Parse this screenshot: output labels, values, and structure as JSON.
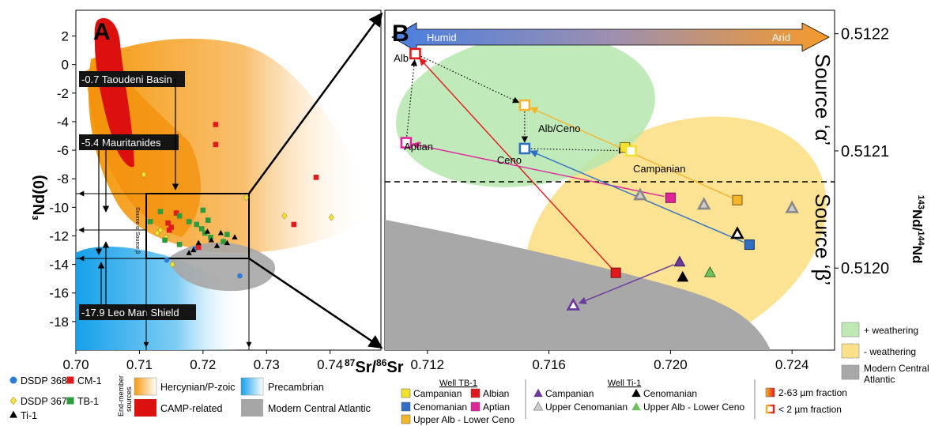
{
  "panelA": {
    "label": "A",
    "xlabel": "87Sr/86Sr",
    "xlabel_sup": "87",
    "xlabel_main1": "Sr/",
    "xlabel_sup2": "86",
    "xlabel_main2": "Sr",
    "ylabel": "εNd(0)",
    "ylabel_eps": "ε",
    "ylabel_rest": "Nd(0)",
    "x_ticks": [
      {
        "v": 0.7,
        "l": "0.70"
      },
      {
        "v": 0.71,
        "l": "0.71"
      },
      {
        "v": 0.72,
        "l": "0.72"
      },
      {
        "v": 0.73,
        "l": "0.73"
      },
      {
        "v": 0.74,
        "l": "0.74"
      }
    ],
    "y_ticks": [
      {
        "v": 2,
        "l": "2"
      },
      {
        "v": 0,
        "l": "0"
      },
      {
        "v": -2,
        "l": "-2"
      },
      {
        "v": -4,
        "l": "-4"
      },
      {
        "v": -6,
        "l": "-6"
      },
      {
        "v": -8,
        "l": "-8"
      },
      {
        "v": -10,
        "l": "-10"
      },
      {
        "v": -12,
        "l": "-12"
      },
      {
        "v": -14,
        "l": "-14"
      },
      {
        "v": -16,
        "l": "-16"
      },
      {
        "v": -18,
        "l": "-18"
      }
    ],
    "end_member_labels": [
      "-0.7 Taoudeni Basin",
      "-5.4 Mauritanides",
      "-17.9 Leo Man Shield"
    ],
    "small_labels": [
      "Source α",
      "Source β"
    ]
  },
  "panelB": {
    "label": "B",
    "ylabel": "143Nd/144Nd",
    "ylabel_sup1": "143",
    "ylabel_main1": "Nd/",
    "ylabel_sup2": "144",
    "ylabel_main2": "Nd",
    "x_ticks": [
      {
        "v": 0.712,
        "l": "0.712"
      },
      {
        "v": 0.716,
        "l": "0.716"
      },
      {
        "v": 0.72,
        "l": "0.720"
      },
      {
        "v": 0.724,
        "l": "0.724"
      }
    ],
    "y_ticks": [
      {
        "v": 0.5122,
        "l": "0.5122"
      },
      {
        "v": 0.5121,
        "l": "0.5121"
      },
      {
        "v": 0.512,
        "l": "0.5120"
      }
    ],
    "arrow_left": "Humid",
    "arrow_right": "Arid",
    "source_alpha": "Source ‘α’",
    "source_beta": "Source ‘β’",
    "point_labels": [
      "Alb",
      "Alb/Ceno",
      "Aptian",
      "Ceno",
      "Campanian"
    ]
  },
  "chart_data": [
    {
      "type": "scatter",
      "panel": "A",
      "xlim": [
        0.7,
        0.748
      ],
      "ylim": [
        -20,
        3.8
      ],
      "series": [
        {
          "name": "DSDP 368",
          "marker": "circle",
          "color": "#2a7fd4",
          "points": [
            [
              0.7143,
              -13.7
            ],
            [
              0.7187,
              -12.9
            ],
            [
              0.7258,
              -14.8
            ]
          ]
        },
        {
          "name": "CM-1",
          "marker": "square",
          "color": "#e31a1c",
          "points": [
            [
              0.722,
              -4.2
            ],
            [
              0.722,
              -5.6
            ],
            [
              0.7158,
              -10.4
            ],
            [
              0.7145,
              -11.1
            ],
            [
              0.7147,
              -11.6
            ],
            [
              0.7193,
              -12.8
            ],
            [
              0.7343,
              -11.2
            ],
            [
              0.7378,
              -7.9
            ],
            [
              0.715,
              -11.4
            ]
          ]
        },
        {
          "name": "DSDP 367",
          "marker": "diamond",
          "color": "#f6e23a",
          "points": [
            [
              0.7107,
              -7.7
            ],
            [
              0.7128,
              -11.8
            ],
            [
              0.7142,
              -12.1
            ],
            [
              0.7152,
              -14.0
            ],
            [
              0.7268,
              -9.3
            ],
            [
              0.7328,
              -10.6
            ],
            [
              0.7402,
              -10.7
            ],
            [
              0.7133,
              -11.6
            ]
          ]
        },
        {
          "name": "TB-1",
          "marker": "square",
          "color": "#2e9c3c",
          "points": [
            [
              0.7117,
              -11.0
            ],
            [
              0.7133,
              -10.3
            ],
            [
              0.7163,
              -10.6
            ],
            [
              0.7178,
              -11.0
            ],
            [
              0.719,
              -11.2
            ],
            [
              0.7198,
              -11.5
            ],
            [
              0.7203,
              -11.8
            ],
            [
              0.7212,
              -12.1
            ],
            [
              0.7238,
              -11.9
            ],
            [
              0.7232,
              -12.4
            ],
            [
              0.7163,
              -12.6
            ],
            [
              0.7208,
              -10.9
            ],
            [
              0.72,
              -10.2
            ],
            [
              0.714,
              -12.3
            ]
          ]
        },
        {
          "name": "Ti-1",
          "marker": "triangle",
          "color": "#000000",
          "points": [
            [
              0.7207,
              -11.7
            ],
            [
              0.7213,
              -12.3
            ],
            [
              0.7222,
              -12.7
            ],
            [
              0.7228,
              -11.8
            ],
            [
              0.7238,
              -12.5
            ],
            [
              0.725,
              -12.1
            ],
            [
              0.7185,
              -13.0
            ],
            [
              0.7178,
              -13.2
            ],
            [
              0.7193,
              -12.5
            ]
          ]
        }
      ]
    },
    {
      "type": "scatter",
      "panel": "B",
      "xlim": [
        0.7106,
        0.7254
      ],
      "ylim": [
        0.51193,
        0.51222
      ],
      "series": [
        {
          "name": "Albian (2-63 µm)",
          "well": "TB-1",
          "marker": "square",
          "fill": "#e31a1c",
          "stroke": "#7a1010",
          "points": [
            [
              0.7182,
              0.511996
            ]
          ]
        },
        {
          "name": "Albian (< 2 µm)",
          "well": "TB-1",
          "marker": "square-open",
          "fill": "#ffffff",
          "stroke": "#e31a1c",
          "points": [
            [
              0.7116,
              0.512183
            ]
          ]
        },
        {
          "name": "Aptian (2-63 µm)",
          "well": "TB-1",
          "marker": "square",
          "fill": "#e0259b",
          "stroke": "#7a1050",
          "points": [
            [
              0.72,
              0.51206
            ]
          ]
        },
        {
          "name": "Aptian (< 2 µm)",
          "well": "TB-1",
          "marker": "square-open",
          "fill": "#ffffff",
          "stroke": "#e0259b",
          "points": [
            [
              0.7113,
              0.512107
            ]
          ]
        },
        {
          "name": "Campanian (2-63 µm)",
          "well": "TB-1",
          "marker": "square",
          "fill": "#f4e12e",
          "stroke": "#7a6a10",
          "points": [
            [
              0.7185,
              0.512103
            ]
          ]
        },
        {
          "name": "Campanian (< 2 µm)",
          "well": "TB-1",
          "marker": "square-open",
          "fill": "#ffffff",
          "stroke": "#f4e12e",
          "points": [
            [
              0.7187,
              0.5121
            ]
          ]
        },
        {
          "name": "Cenomanian (2-63 µm)",
          "well": "TB-1",
          "marker": "square",
          "fill": "#2f6fc4",
          "stroke": "#143060",
          "points": [
            [
              0.7226,
              0.51202
            ]
          ]
        },
        {
          "name": "Cenomanian (< 2 µm)",
          "well": "TB-1",
          "marker": "square-open",
          "fill": "#ffffff",
          "stroke": "#2f6fc4",
          "points": [
            [
              0.7152,
              0.512102
            ]
          ]
        },
        {
          "name": "Upper Alb - Lower Ceno (2-63 µm)",
          "well": "TB-1",
          "marker": "square",
          "fill": "#f5b52a",
          "stroke": "#7a5410",
          "points": [
            [
              0.7222,
              0.512058
            ]
          ]
        },
        {
          "name": "Upper Alb - Lower Ceno (< 2 µm)",
          "well": "TB-1",
          "marker": "square-open",
          "fill": "#ffffff",
          "stroke": "#f5b52a",
          "points": [
            [
              0.7152,
              0.512139
            ]
          ]
        },
        {
          "name": "Campanian (2-63 µm)",
          "well": "Ti-1",
          "marker": "triangle",
          "fill": "#6c3a9c",
          "stroke": "#3a1a60",
          "points": [
            [
              0.7203,
              0.512005
            ]
          ]
        },
        {
          "name": "Campanian (< 2 µm)",
          "well": "Ti-1",
          "marker": "triangle-open",
          "fill": "#ffffff",
          "stroke": "#6c3a9c",
          "points": [
            [
              0.7168,
              0.511968
            ]
          ]
        },
        {
          "name": "Cenomanian (2-63 µm)",
          "well": "Ti-1",
          "marker": "triangle",
          "fill": "#000000",
          "stroke": "#000000",
          "points": [
            [
              0.7204,
              0.511992
            ]
          ]
        },
        {
          "name": "Cenomanian (< 2 µm)",
          "well": "Ti-1",
          "marker": "triangle-open",
          "fill": "#ffffff",
          "stroke": "#000000",
          "points": [
            [
              0.7222,
              0.512029
            ]
          ]
        },
        {
          "name": "Upper Cenomanian (< 2 µm)",
          "well": "Ti-1",
          "marker": "triangle-open",
          "fill": "#cccccc",
          "stroke": "#888888",
          "points": [
            [
              0.719,
              0.512062
            ],
            [
              0.7211,
              0.512054
            ],
            [
              0.724,
              0.512051
            ]
          ]
        },
        {
          "name": "Upper Alb - Lower Ceno (2-63 µm)",
          "well": "Ti-1",
          "marker": "triangle",
          "fill": "#6fc05e",
          "stroke": "#2e6a20",
          "points": [
            [
              0.7213,
              0.511996
            ]
          ]
        }
      ],
      "arrows": [
        {
          "from": [
            0.7182,
            0.511996
          ],
          "to": [
            0.7116,
            0.512183
          ],
          "color": "#e31a1c",
          "style": "solid"
        },
        {
          "from": [
            0.72,
            0.51206
          ],
          "to": [
            0.7113,
            0.512107
          ],
          "color": "#e0259b",
          "style": "solid"
        },
        {
          "from": [
            0.7222,
            0.512058
          ],
          "to": [
            0.7152,
            0.512139
          ],
          "color": "#f5b52a",
          "style": "solid"
        },
        {
          "from": [
            0.7226,
            0.51202
          ],
          "to": [
            0.7152,
            0.512102
          ],
          "color": "#2f6fc4",
          "style": "solid"
        },
        {
          "from": [
            0.7203,
            0.512005
          ],
          "to": [
            0.7168,
            0.511968
          ],
          "color": "#6c3a9c",
          "style": "solid"
        },
        {
          "from": [
            0.7116,
            0.512183
          ],
          "to": [
            0.7152,
            0.512139
          ],
          "color": "#000000",
          "style": "dotted"
        },
        {
          "from": [
            0.7113,
            0.512107
          ],
          "to": [
            0.7116,
            0.512183
          ],
          "color": "#000000",
          "style": "dotted"
        },
        {
          "from": [
            0.7152,
            0.512139
          ],
          "to": [
            0.7152,
            0.512102
          ],
          "color": "#000000",
          "style": "dotted"
        },
        {
          "from": [
            0.7152,
            0.512102
          ],
          "to": [
            0.7187,
            0.5121
          ],
          "color": "#000000",
          "style": "dotted"
        }
      ]
    }
  ],
  "legend_left": {
    "items": [
      {
        "label": "DSDP 368",
        "marker": "circle",
        "color": "#2a7fd4"
      },
      {
        "label": "CM-1",
        "marker": "square",
        "color": "#e31a1c"
      },
      {
        "label": "DSDP 367",
        "marker": "diamond",
        "color": "#f6e23a"
      },
      {
        "label": "TB-1",
        "marker": "square",
        "color": "#2e9c3c"
      },
      {
        "label": "Ti-1",
        "marker": "triangle",
        "color": "#000000"
      }
    ],
    "end_member_title": "End-member sources",
    "end_member_title_1": "End-member",
    "end_member_title_2": "sources",
    "end_members": [
      {
        "label": "Hercynian/P-zoic",
        "color": "#f5a01e"
      },
      {
        "label": "Precambrian",
        "color": "#2ea6e8"
      },
      {
        "label": "CAMP-related",
        "color": "#dd1010"
      },
      {
        "label": "Modern Central Atlantic",
        "color": "#a0a0a0"
      }
    ]
  },
  "legend_b": {
    "well_tb1": "Well TB-1",
    "well_ti1": "Well Ti-1",
    "tb1_items": [
      {
        "label": "Campanian",
        "color": "#f4e12e"
      },
      {
        "label": "Albian",
        "color": "#e31a1c"
      },
      {
        "label": "Cenomanian",
        "color": "#2f6fc4"
      },
      {
        "label": "Aptian",
        "color": "#e0259b"
      },
      {
        "label": "Upper Alb - Lower Ceno",
        "color": "#f5b52a"
      }
    ],
    "ti1_items": [
      {
        "label": "Campanian",
        "color": "#6c3a9c"
      },
      {
        "label": "Cenomanian",
        "color": "#000000"
      },
      {
        "label": "Upper Cenomanian",
        "color": "#cccccc"
      },
      {
        "label": "Upper Alb - Lower Ceno",
        "color": "#6fc05e"
      }
    ],
    "fraction_coarse": "2-63 µm fraction",
    "fraction_fine": "< 2 µm fraction"
  },
  "legend_right": {
    "items": [
      {
        "label": "+ weathering",
        "color": "#bfe8b5"
      },
      {
        "label": "- weathering",
        "color": "#fbe08a"
      },
      {
        "label": "Modern Central Atlantic",
        "color": "#a8a8a8"
      }
    ],
    "mca_1": "Modern Central",
    "mca_2": "Atlantic"
  }
}
